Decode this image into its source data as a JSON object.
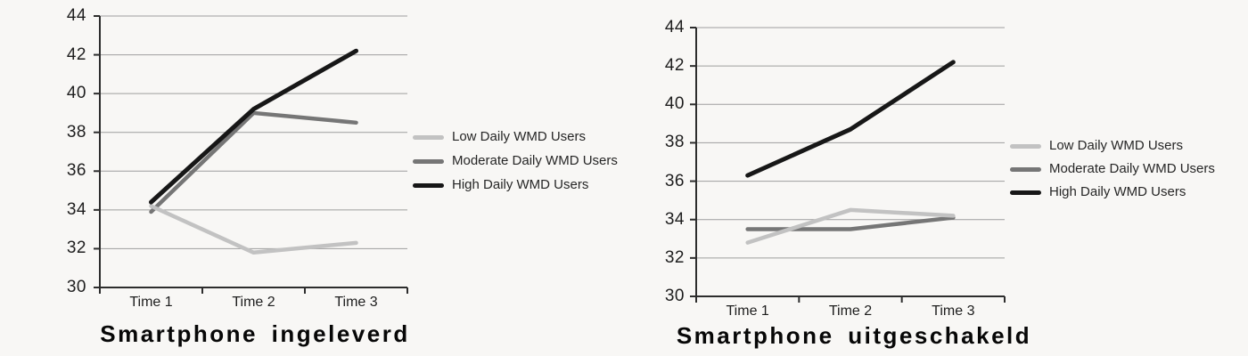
{
  "figure": {
    "description_labels": {
      "left_title": "Smartphone ingeleverd",
      "right_title": "Smartphone uitgeschakeld"
    }
  },
  "style": {
    "page_bg": "#f8f7f5",
    "grid_color": "#9e9e9e",
    "axis_color": "#2d2d2d",
    "tick_text_color": "#1e1e1e",
    "legend_text_color": "#262626",
    "title_color": "#070707",
    "series_low_color": "#c2c2c2",
    "series_moderate_color": "#767676",
    "series_high_color": "#171717"
  },
  "chart_data": [
    {
      "type": "line",
      "title": "Smartphone ingeleverd",
      "categories": [
        "Time 1",
        "Time 2",
        "Time 3"
      ],
      "xlabel": "",
      "ylabel": "",
      "ylim": [
        30,
        44
      ],
      "yticks": [
        30,
        32,
        34,
        36,
        38,
        40,
        42,
        44
      ],
      "grid": true,
      "legend_position": "right",
      "series": [
        {
          "name": "Low Daily WMD Users",
          "color": "#c2c2c2",
          "values": [
            34.2,
            31.8,
            32.3
          ]
        },
        {
          "name": "Moderate Daily WMD Users",
          "color": "#767676",
          "values": [
            33.9,
            39.0,
            38.5
          ]
        },
        {
          "name": "High Daily WMD Users",
          "color": "#171717",
          "values": [
            34.4,
            39.2,
            42.2
          ]
        }
      ]
    },
    {
      "type": "line",
      "title": "Smartphone uitgeschakeld",
      "categories": [
        "Time 1",
        "Time 2",
        "Time 3"
      ],
      "xlabel": "",
      "ylabel": "",
      "ylim": [
        30,
        44
      ],
      "yticks": [
        30,
        32,
        34,
        36,
        38,
        40,
        42,
        44
      ],
      "grid": true,
      "legend_position": "right",
      "series": [
        {
          "name": "Low Daily WMD Users",
          "color": "#c2c2c2",
          "values": [
            32.8,
            34.5,
            34.2
          ]
        },
        {
          "name": "Moderate Daily WMD Users",
          "color": "#767676",
          "values": [
            33.5,
            33.5,
            34.1
          ]
        },
        {
          "name": "High Daily WMD Users",
          "color": "#171717",
          "values": [
            36.3,
            38.7,
            42.2
          ]
        }
      ]
    }
  ]
}
